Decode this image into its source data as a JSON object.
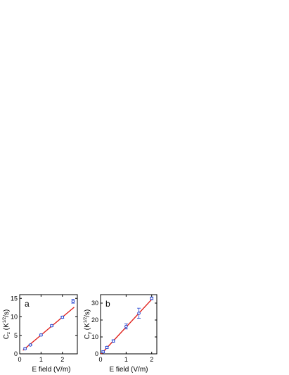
{
  "chart_data": [
    {
      "type": "scatter",
      "panel_label": "a",
      "xlabel": "E field (V/m)",
      "ylabel_main": "C",
      "ylabel_sub": "z",
      "ylabel_unit_pre": " (K",
      "ylabel_unit_sup": "1/2",
      "ylabel_unit_post": "/s)",
      "xlim": [
        0,
        2.7
      ],
      "ylim": [
        0,
        16
      ],
      "xticks": [
        0,
        1,
        2
      ],
      "yticks": [
        0,
        5,
        10,
        15
      ],
      "xtick_labels": [
        "0",
        "1",
        "2"
      ],
      "ytick_labels": [
        "0",
        "5",
        "10",
        "15"
      ],
      "points": [
        {
          "x": 0.25,
          "y": 1.4,
          "err": 0.2
        },
        {
          "x": 0.5,
          "y": 2.4,
          "err": 0.2
        },
        {
          "x": 1.0,
          "y": 5.1,
          "err": 0.25
        },
        {
          "x": 1.5,
          "y": 7.6,
          "err": 0.25
        },
        {
          "x": 2.0,
          "y": 9.9,
          "err": 0.3
        },
        {
          "x": 2.5,
          "y": 14.2,
          "err": 0.5
        }
      ],
      "fit": {
        "x": [
          0.15,
          2.55
        ],
        "y": [
          0.95,
          12.6
        ]
      },
      "colors": {
        "points": "#1f3fcf",
        "fit": "#e0201b"
      }
    },
    {
      "type": "scatter",
      "panel_label": "b",
      "xlabel": "E field (V/m)",
      "ylabel_main": "C",
      "ylabel_sub": "y",
      "ylabel_unit_pre": " (K",
      "ylabel_unit_sup": "1/2",
      "ylabel_unit_post": "/s)",
      "xlim": [
        0,
        2.2
      ],
      "ylim": [
        0,
        35
      ],
      "xticks": [
        0,
        1,
        2
      ],
      "yticks": [
        0,
        10,
        20,
        30
      ],
      "xtick_labels": [
        "0",
        "1",
        "2"
      ],
      "ytick_labels": [
        "0",
        "10",
        "20",
        "30"
      ],
      "points": [
        {
          "x": 0.1,
          "y": 1.2,
          "err": 0.6
        },
        {
          "x": 0.25,
          "y": 3.8,
          "err": 0.6
        },
        {
          "x": 0.5,
          "y": 7.6,
          "err": 0.7
        },
        {
          "x": 1.0,
          "y": 16.2,
          "err": 1.5
        },
        {
          "x": 1.5,
          "y": 24.0,
          "err": 3.0
        },
        {
          "x": 2.0,
          "y": 32.8,
          "err": 0.8
        }
      ],
      "fit": {
        "x": [
          0.03,
          2.05
        ],
        "y": [
          0.0,
          33.0
        ]
      },
      "colors": {
        "points": "#1f3fcf",
        "fit": "#e0201b"
      }
    }
  ]
}
